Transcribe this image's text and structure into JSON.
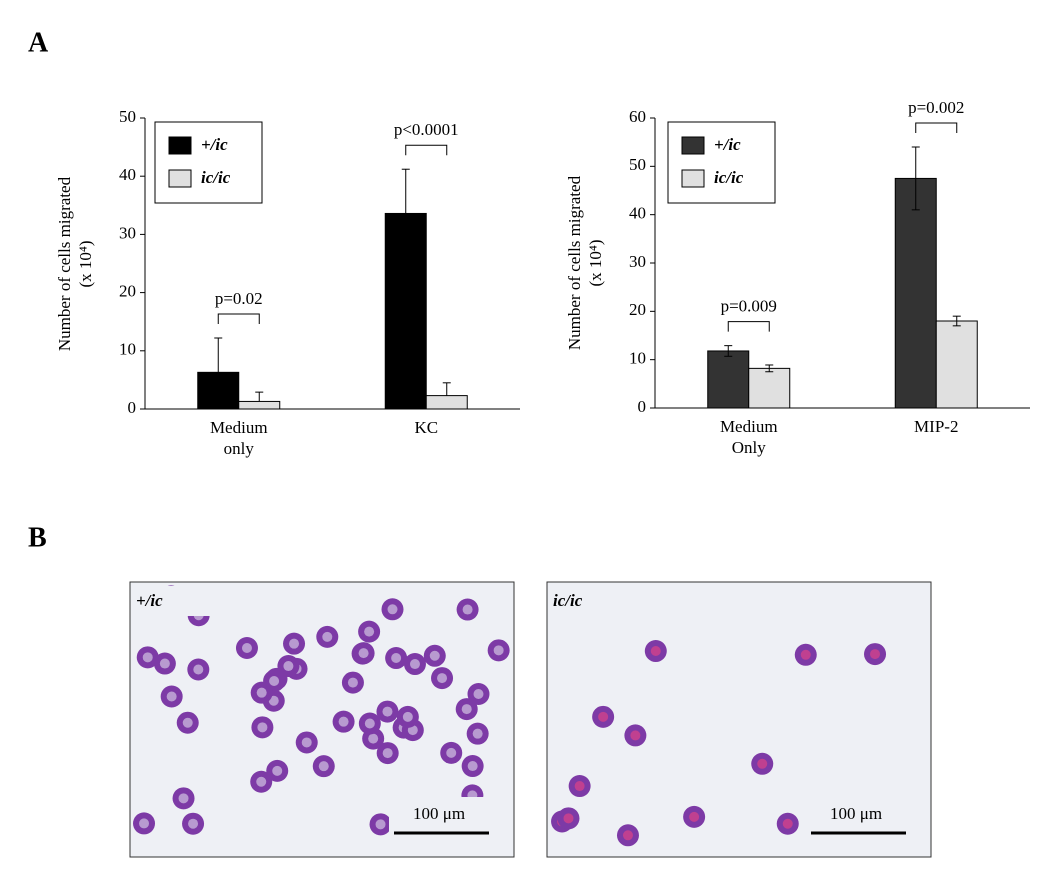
{
  "panel_a_label": "A",
  "panel_b_label": "B",
  "chart_data": [
    {
      "type": "bar",
      "y_label": "Number of cells migrated (x 10⁴)",
      "categories": [
        "Medium only",
        "KC"
      ],
      "series": [
        {
          "name": "+/ic",
          "color": "#000000",
          "values": [
            6.3,
            33.6
          ],
          "errors": [
            5.9,
            7.6
          ]
        },
        {
          "name": "ic/ic",
          "color": "#e0e0e0",
          "values": [
            1.3,
            2.3
          ],
          "errors": [
            1.6,
            2.2
          ]
        }
      ],
      "error_direction": "up",
      "annotations": [
        "p=0.02",
        "p<0.0001"
      ],
      "ylim": [
        0,
        50
      ],
      "yticks": [
        0,
        10,
        20,
        30,
        40,
        50
      ]
    },
    {
      "type": "bar",
      "y_label": "Number of cells migrated (x 10⁴)",
      "categories": [
        "Medium Only",
        "MIP-2"
      ],
      "series": [
        {
          "name": "+/ic",
          "color": "#333333",
          "values": [
            11.8,
            47.5
          ],
          "errors": [
            1.1,
            6.5
          ]
        },
        {
          "name": "ic/ic",
          "color": "#e0e0e0",
          "values": [
            8.2,
            18.0
          ],
          "errors": [
            0.7,
            1.0
          ]
        }
      ],
      "error_direction": "both",
      "annotations": [
        "p=0.009",
        "p=0.002"
      ],
      "ylim": [
        0,
        60
      ],
      "yticks": [
        0,
        10,
        20,
        30,
        40,
        50,
        60
      ]
    }
  ],
  "micrographs": [
    {
      "label": "+/ic",
      "scale_bar": "100 μm"
    },
    {
      "label": "ic/ic",
      "scale_bar": "100 μm"
    }
  ]
}
